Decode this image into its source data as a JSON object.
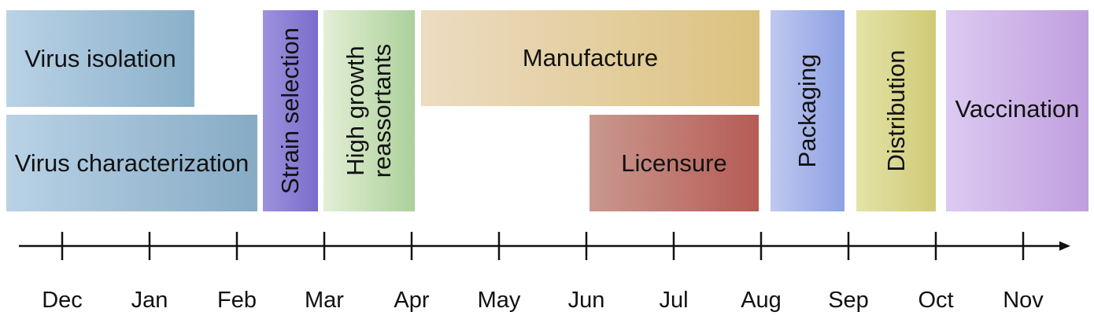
{
  "phases": [
    {
      "id": "virus-isolation",
      "label": "Virus isolation",
      "colors": [
        "#b9d2e6",
        "#8ab0c9"
      ]
    },
    {
      "id": "virus-characterization",
      "label": "Virus characterization",
      "colors": [
        "#b9d2e6",
        "#87abc5"
      ]
    },
    {
      "id": "strain-selection",
      "label": "Strain selection",
      "colors": [
        "#9d92dc",
        "#7a6ccd"
      ]
    },
    {
      "id": "high-growth-reassortants",
      "label": "High growth\nreassortants",
      "colors": [
        "#e3efd6",
        "#acd09a"
      ]
    },
    {
      "id": "manufacture",
      "label": "Manufacture",
      "colors": [
        "#ecdcc2",
        "#dcc27f"
      ]
    },
    {
      "id": "licensure",
      "label": "Licensure",
      "colors": [
        "#c9988e",
        "#b65b55"
      ]
    },
    {
      "id": "packaging",
      "label": "Packaging",
      "colors": [
        "#bfc8ef",
        "#8da1e3"
      ]
    },
    {
      "id": "distribution",
      "label": "Distribution",
      "colors": [
        "#e4e3a8",
        "#cfca76"
      ]
    },
    {
      "id": "vaccination",
      "label": "Vaccination",
      "colors": [
        "#dccaf1",
        "#c09ede"
      ]
    }
  ],
  "months": [
    "Dec",
    "Jan",
    "Feb",
    "Mar",
    "Apr",
    "May",
    "Jun",
    "Jul",
    "Aug",
    "Sep",
    "Oct",
    "Nov"
  ],
  "axis_color": "#111111"
}
